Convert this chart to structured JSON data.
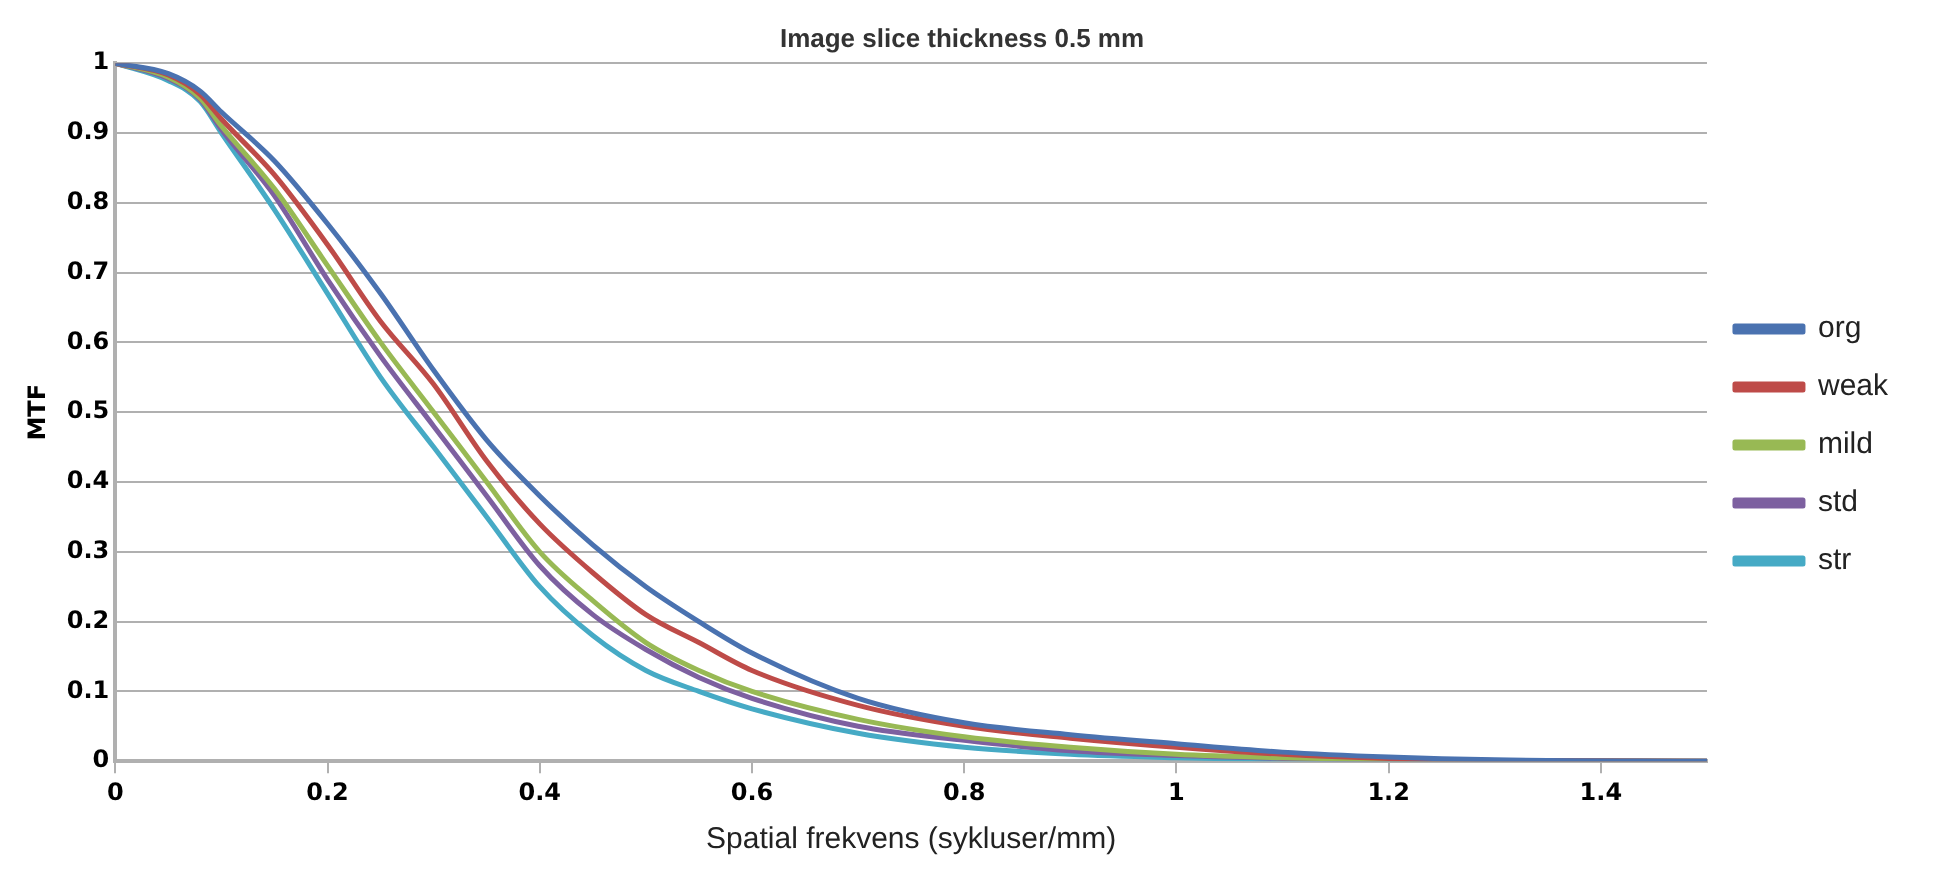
{
  "chart_data": {
    "type": "line",
    "title": "Image slice thickness 0.5 mm",
    "xlabel": "Spatial frekvens (sykluser/mm)",
    "ylabel": "MTF",
    "x": [
      0,
      0.05,
      0.08,
      0.1,
      0.15,
      0.2,
      0.25,
      0.3,
      0.35,
      0.4,
      0.45,
      0.5,
      0.55,
      0.6,
      0.7,
      0.8,
      0.9,
      1.0,
      1.1,
      1.2,
      1.3,
      1.5
    ],
    "series": [
      {
        "name": "org",
        "color": "#4a72b0",
        "values": [
          1,
          0.985,
          0.96,
          0.93,
          0.86,
          0.77,
          0.67,
          0.56,
          0.46,
          0.38,
          0.31,
          0.25,
          0.2,
          0.155,
          0.09,
          0.055,
          0.038,
          0.025,
          0.013,
          0.006,
          0.002,
          0
        ]
      },
      {
        "name": "weak",
        "color": "#be4b48",
        "values": [
          1,
          0.983,
          0.955,
          0.92,
          0.84,
          0.74,
          0.63,
          0.54,
          0.43,
          0.34,
          0.27,
          0.21,
          0.17,
          0.13,
          0.08,
          0.05,
          0.033,
          0.02,
          0.01,
          0.004,
          0.001,
          0
        ]
      },
      {
        "name": "mild",
        "color": "#98b954",
        "values": [
          1,
          0.98,
          0.95,
          0.91,
          0.82,
          0.71,
          0.6,
          0.5,
          0.4,
          0.3,
          0.23,
          0.17,
          0.13,
          0.1,
          0.06,
          0.035,
          0.02,
          0.01,
          0.005,
          0.002,
          0.001,
          0
        ]
      },
      {
        "name": "std",
        "color": "#7d60a0",
        "values": [
          1,
          0.978,
          0.948,
          0.905,
          0.81,
          0.69,
          0.58,
          0.48,
          0.38,
          0.28,
          0.21,
          0.16,
          0.12,
          0.09,
          0.05,
          0.03,
          0.015,
          0.008,
          0.004,
          0.001,
          0,
          0
        ]
      },
      {
        "name": "str",
        "color": "#46aac5",
        "values": [
          1,
          0.975,
          0.945,
          0.9,
          0.79,
          0.67,
          0.55,
          0.45,
          0.35,
          0.25,
          0.18,
          0.13,
          0.1,
          0.075,
          0.04,
          0.02,
          0.01,
          0.005,
          0.002,
          0.001,
          0,
          0
        ]
      }
    ],
    "xlim": [
      0,
      1.5
    ],
    "xticks": [
      0,
      0.2,
      0.4,
      0.6,
      0.8,
      1,
      1.2,
      1.4
    ],
    "ylim": [
      0,
      1
    ],
    "yticks": [
      0,
      0.1,
      0.2,
      0.3,
      0.4,
      0.5,
      0.6,
      0.7,
      0.8,
      0.9,
      1
    ],
    "grid": "y",
    "legend": "right",
    "marker": "none",
    "line_style": "solid"
  }
}
